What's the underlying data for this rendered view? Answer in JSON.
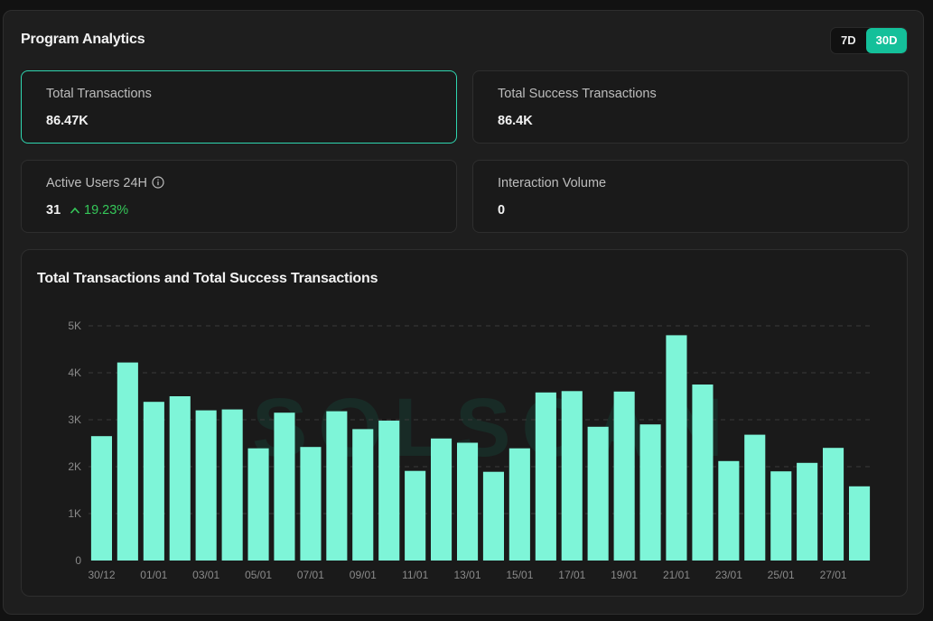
{
  "header": {
    "title": "Program Analytics"
  },
  "range_toggle": {
    "options": [
      "7D",
      "30D"
    ],
    "active": "30D"
  },
  "stats": {
    "total_transactions": {
      "label": "Total Transactions",
      "value": "86.47K"
    },
    "total_success": {
      "label": "Total Success Transactions",
      "value": "86.4K"
    },
    "active_users": {
      "label": "Active Users 24H",
      "value": "31",
      "change": "19.23%",
      "change_direction": "up"
    },
    "interaction_volume": {
      "label": "Interaction Volume",
      "value": "0"
    }
  },
  "chart": {
    "title": "Total Transactions and Total Success Transactions",
    "watermark": "SOLSCAN"
  },
  "chart_data": {
    "type": "bar",
    "title": "Total Transactions and Total Success Transactions",
    "color": "#7ef5d8",
    "y_ticks": [
      "0",
      "1K",
      "2K",
      "3K",
      "4K",
      "5K"
    ],
    "ylim": [
      0,
      5000
    ],
    "grid": true,
    "x_tick_labels": [
      "30/12",
      "01/01",
      "03/01",
      "05/01",
      "07/01",
      "09/01",
      "11/01",
      "13/01",
      "15/01",
      "17/01",
      "19/01",
      "21/01",
      "23/01",
      "25/01",
      "27/01"
    ],
    "categories": [
      "30/12",
      "31/12",
      "01/01",
      "02/01",
      "03/01",
      "04/01",
      "05/01",
      "06/01",
      "07/01",
      "08/01",
      "09/01",
      "10/01",
      "11/01",
      "12/01",
      "13/01",
      "14/01",
      "15/01",
      "16/01",
      "17/01",
      "18/01",
      "19/01",
      "20/01",
      "21/01",
      "22/01",
      "23/01",
      "24/01",
      "25/01",
      "26/01",
      "27/01",
      "28/01"
    ],
    "values": [
      2650,
      4220,
      3380,
      3500,
      3200,
      3220,
      2390,
      3150,
      2420,
      3180,
      2800,
      2980,
      1910,
      2600,
      2510,
      1890,
      2390,
      3580,
      3610,
      2850,
      3600,
      2900,
      4800,
      3750,
      2120,
      2680,
      1900,
      2080,
      2400,
      1580
    ]
  }
}
